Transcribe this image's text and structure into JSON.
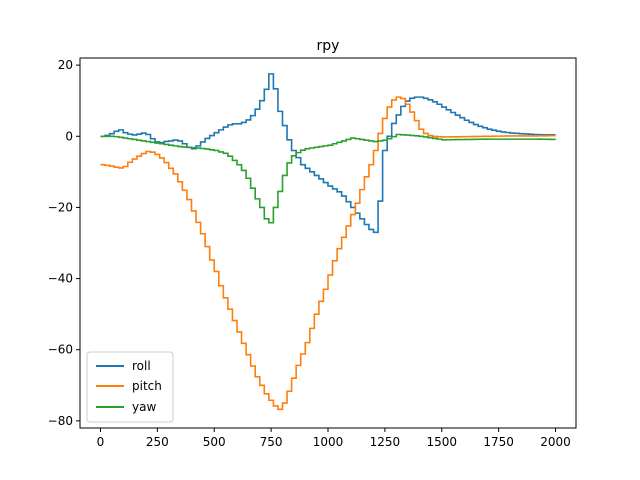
{
  "chart_data": {
    "type": "line",
    "title": "rpy",
    "xlabel": "",
    "ylabel": "",
    "xlim": [
      -90,
      2090
    ],
    "ylim": [
      -82,
      22
    ],
    "xticks": [
      0,
      250,
      500,
      750,
      1000,
      1250,
      1500,
      1750,
      2000
    ],
    "yticks": [
      20,
      0,
      -20,
      -40,
      -60,
      -80
    ],
    "grid": false,
    "legend_position": "lower-left",
    "series": [
      {
        "name": "roll",
        "color": "#1f77b4",
        "points": [
          [
            0,
            0
          ],
          [
            25,
            0.3
          ],
          [
            50,
            1
          ],
          [
            75,
            2
          ],
          [
            100,
            1
          ],
          [
            125,
            0.5
          ],
          [
            150,
            0.3
          ],
          [
            175,
            1
          ],
          [
            200,
            0.5
          ],
          [
            225,
            -1
          ],
          [
            250,
            -2
          ],
          [
            275,
            -1.5
          ],
          [
            300,
            -1.3
          ],
          [
            325,
            -1
          ],
          [
            350,
            -1.5
          ],
          [
            375,
            -3
          ],
          [
            400,
            -3.5
          ],
          [
            425,
            -2.5
          ],
          [
            450,
            -1
          ],
          [
            475,
            0
          ],
          [
            500,
            1
          ],
          [
            525,
            2
          ],
          [
            550,
            3
          ],
          [
            575,
            3.5
          ],
          [
            600,
            3.5
          ],
          [
            625,
            4
          ],
          [
            650,
            5
          ],
          [
            675,
            7
          ],
          [
            700,
            10
          ],
          [
            725,
            14
          ],
          [
            737,
            18
          ],
          [
            750,
            16
          ],
          [
            765,
            12
          ],
          [
            780,
            7
          ],
          [
            800,
            3
          ],
          [
            820,
            -1
          ],
          [
            840,
            -4
          ],
          [
            860,
            -6
          ],
          [
            880,
            -8
          ],
          [
            900,
            -9
          ],
          [
            920,
            -10
          ],
          [
            940,
            -11
          ],
          [
            960,
            -12
          ],
          [
            980,
            -13
          ],
          [
            1000,
            -14
          ],
          [
            1025,
            -15
          ],
          [
            1050,
            -16
          ],
          [
            1075,
            -18
          ],
          [
            1100,
            -20
          ],
          [
            1125,
            -22
          ],
          [
            1150,
            -24
          ],
          [
            1175,
            -26
          ],
          [
            1200,
            -27
          ],
          [
            1225,
            -16
          ],
          [
            1240,
            -4
          ],
          [
            1260,
            0
          ],
          [
            1275,
            3
          ],
          [
            1300,
            6
          ],
          [
            1325,
            9
          ],
          [
            1350,
            10.5
          ],
          [
            1375,
            11
          ],
          [
            1400,
            11
          ],
          [
            1425,
            10.6
          ],
          [
            1450,
            10
          ],
          [
            1475,
            9.2
          ],
          [
            1500,
            8.2
          ],
          [
            1550,
            6.3
          ],
          [
            1600,
            4.5
          ],
          [
            1650,
            3
          ],
          [
            1700,
            2
          ],
          [
            1750,
            1.3
          ],
          [
            1800,
            0.9
          ],
          [
            1850,
            0.7
          ],
          [
            1900,
            0.5
          ],
          [
            1950,
            0.4
          ],
          [
            2000,
            0.4
          ]
        ]
      },
      {
        "name": "pitch",
        "color": "#ff7f0e",
        "points": [
          [
            0,
            -8
          ],
          [
            25,
            -8.2
          ],
          [
            50,
            -8.5
          ],
          [
            75,
            -9
          ],
          [
            100,
            -8.5
          ],
          [
            125,
            -7
          ],
          [
            150,
            -6
          ],
          [
            175,
            -5
          ],
          [
            200,
            -4.3
          ],
          [
            225,
            -4.5
          ],
          [
            250,
            -5.5
          ],
          [
            275,
            -7
          ],
          [
            300,
            -9
          ],
          [
            325,
            -11
          ],
          [
            350,
            -14
          ],
          [
            375,
            -17
          ],
          [
            400,
            -21
          ],
          [
            425,
            -25
          ],
          [
            450,
            -29
          ],
          [
            475,
            -34
          ],
          [
            500,
            -38
          ],
          [
            525,
            -43
          ],
          [
            550,
            -47
          ],
          [
            575,
            -51
          ],
          [
            600,
            -55
          ],
          [
            625,
            -59
          ],
          [
            650,
            -63
          ],
          [
            675,
            -67
          ],
          [
            700,
            -70
          ],
          [
            725,
            -73
          ],
          [
            750,
            -75
          ],
          [
            775,
            -77
          ],
          [
            795,
            -76
          ],
          [
            810,
            -73
          ],
          [
            825,
            -71
          ],
          [
            850,
            -66
          ],
          [
            875,
            -62
          ],
          [
            900,
            -58
          ],
          [
            925,
            -53
          ],
          [
            950,
            -48
          ],
          [
            975,
            -44
          ],
          [
            1000,
            -39
          ],
          [
            1025,
            -34
          ],
          [
            1050,
            -30
          ],
          [
            1075,
            -26
          ],
          [
            1100,
            -22
          ],
          [
            1125,
            -18
          ],
          [
            1150,
            -13
          ],
          [
            1175,
            -9
          ],
          [
            1200,
            -4
          ],
          [
            1225,
            2
          ],
          [
            1250,
            7
          ],
          [
            1275,
            10
          ],
          [
            1300,
            11
          ],
          [
            1325,
            10.5
          ],
          [
            1350,
            8
          ],
          [
            1375,
            5
          ],
          [
            1400,
            2
          ],
          [
            1425,
            0.5
          ],
          [
            1450,
            0
          ],
          [
            1500,
            -0.2
          ],
          [
            1600,
            -0.1
          ],
          [
            1700,
            0
          ],
          [
            1800,
            0.1
          ],
          [
            1900,
            0.1
          ],
          [
            2000,
            0.2
          ]
        ]
      },
      {
        "name": "yaw",
        "color": "#2ca02c",
        "points": [
          [
            0,
            0
          ],
          [
            50,
            0
          ],
          [
            100,
            -0.5
          ],
          [
            150,
            -1
          ],
          [
            200,
            -1.5
          ],
          [
            250,
            -2
          ],
          [
            300,
            -2.5
          ],
          [
            350,
            -3
          ],
          [
            400,
            -3.2
          ],
          [
            450,
            -3.5
          ],
          [
            500,
            -4
          ],
          [
            550,
            -5
          ],
          [
            600,
            -8
          ],
          [
            625,
            -10
          ],
          [
            650,
            -13
          ],
          [
            675,
            -17
          ],
          [
            700,
            -20
          ],
          [
            725,
            -24
          ],
          [
            737,
            -25
          ],
          [
            750,
            -22
          ],
          [
            770,
            -18
          ],
          [
            790,
            -13
          ],
          [
            810,
            -9
          ],
          [
            830,
            -6
          ],
          [
            850,
            -5
          ],
          [
            875,
            -4
          ],
          [
            900,
            -3.5
          ],
          [
            950,
            -3
          ],
          [
            1000,
            -2.5
          ],
          [
            1050,
            -1.5
          ],
          [
            1100,
            -0.5
          ],
          [
            1150,
            -1
          ],
          [
            1200,
            -1.5
          ],
          [
            1250,
            -1
          ],
          [
            1300,
            0.5
          ],
          [
            1350,
            0.3
          ],
          [
            1400,
            0
          ],
          [
            1450,
            -0.5
          ],
          [
            1500,
            -1
          ],
          [
            1600,
            -0.9
          ],
          [
            1700,
            -0.8
          ],
          [
            1800,
            -0.8
          ],
          [
            1900,
            -0.8
          ],
          [
            2000,
            -0.9
          ]
        ]
      }
    ]
  }
}
